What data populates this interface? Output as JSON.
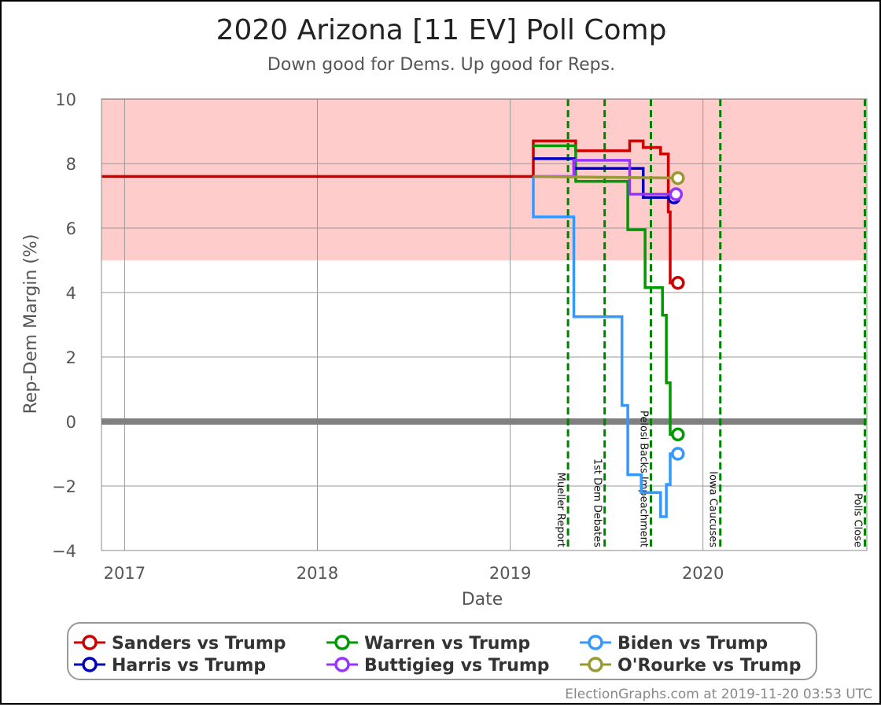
{
  "header": {
    "title": "2020 Arizona [11 EV] Poll Comp",
    "subtitle": "Down good for Dems. Up good for Reps."
  },
  "footer": {
    "credit": "ElectionGraphs.com at 2019-11-20 03:53 UTC"
  },
  "colors": {
    "rep_band": "#ffcccc",
    "rep_band_line": "#e08080",
    "zero_line": "#808080",
    "grid": "#999999",
    "event": "#008000",
    "sanders": "#cc0000",
    "warren": "#009900",
    "biden": "#3399ff",
    "harris": "#0000bb",
    "buttigieg": "#9933ff",
    "orourke": "#999933"
  },
  "chart_data": {
    "type": "line",
    "title": "2020 Arizona [11 EV] Poll Comp",
    "subtitle": "Down good for Dems. Up good for Reps.",
    "xlabel": "Date",
    "ylabel": "Rep-Dem Margin (%)",
    "xlim": [
      2016.88,
      2020.85
    ],
    "ylim": [
      -4,
      10
    ],
    "x_ticks": [
      2017,
      2018,
      2019,
      2020
    ],
    "y_ticks": [
      -4,
      -2,
      0,
      2,
      4,
      6,
      8,
      10
    ],
    "x_tick_labels": [
      "2017",
      "2018",
      "2019",
      "2020"
    ],
    "y_tick_labels": [
      "−4",
      "−2",
      "0",
      "2",
      "4",
      "6",
      "8",
      "10"
    ],
    "grid": true,
    "shaded_band": {
      "from": 5,
      "to": 10,
      "meaning": "Strong Rep"
    },
    "events": [
      {
        "x": 2019.3,
        "label": "Mueller Report"
      },
      {
        "x": 2019.49,
        "label": "1st Dem Debates"
      },
      {
        "x": 2019.73,
        "label": "Pelosi Backs Impeachment"
      },
      {
        "x": 2020.09,
        "label": "Iowa Caucuses"
      },
      {
        "x": 2020.84,
        "label": "Polls Close"
      }
    ],
    "series": [
      {
        "name": "Sanders vs Trump",
        "color_key": "sanders",
        "points": [
          [
            2016.88,
            7.6
          ],
          [
            2019.12,
            7.6
          ],
          [
            2019.12,
            8.7
          ],
          [
            2019.34,
            8.7
          ],
          [
            2019.34,
            8.4
          ],
          [
            2019.62,
            8.4
          ],
          [
            2019.62,
            8.7
          ],
          [
            2019.69,
            8.7
          ],
          [
            2019.69,
            8.5
          ],
          [
            2019.78,
            8.5
          ],
          [
            2019.78,
            8.3
          ],
          [
            2019.82,
            8.3
          ],
          [
            2019.82,
            6.5
          ],
          [
            2019.83,
            6.5
          ],
          [
            2019.83,
            4.3
          ],
          [
            2019.87,
            4.3
          ]
        ]
      },
      {
        "name": "Warren vs Trump",
        "color_key": "warren",
        "points": [
          [
            2019.12,
            8.55
          ],
          [
            2019.34,
            8.55
          ],
          [
            2019.34,
            7.45
          ],
          [
            2019.61,
            7.45
          ],
          [
            2019.61,
            5.95
          ],
          [
            2019.7,
            5.95
          ],
          [
            2019.7,
            4.15
          ],
          [
            2019.79,
            4.15
          ],
          [
            2019.79,
            3.3
          ],
          [
            2019.81,
            3.3
          ],
          [
            2019.81,
            1.2
          ],
          [
            2019.83,
            1.2
          ],
          [
            2019.83,
            -0.4
          ],
          [
            2019.87,
            -0.4
          ]
        ]
      },
      {
        "name": "Biden vs Trump",
        "color_key": "biden",
        "points": [
          [
            2019.12,
            7.6
          ],
          [
            2019.12,
            6.35
          ],
          [
            2019.33,
            6.35
          ],
          [
            2019.33,
            3.25
          ],
          [
            2019.58,
            3.25
          ],
          [
            2019.58,
            0.5
          ],
          [
            2019.61,
            0.5
          ],
          [
            2019.61,
            -1.65
          ],
          [
            2019.68,
            -1.65
          ],
          [
            2019.68,
            -2.2
          ],
          [
            2019.78,
            -2.2
          ],
          [
            2019.78,
            -2.95
          ],
          [
            2019.81,
            -2.95
          ],
          [
            2019.81,
            -1.95
          ],
          [
            2019.83,
            -1.95
          ],
          [
            2019.83,
            -1.0
          ],
          [
            2019.87,
            -1.0
          ]
        ]
      },
      {
        "name": "Harris vs Trump",
        "color_key": "harris",
        "points": [
          [
            2019.12,
            8.15
          ],
          [
            2019.33,
            8.15
          ],
          [
            2019.33,
            7.85
          ],
          [
            2019.69,
            7.85
          ],
          [
            2019.69,
            6.95
          ],
          [
            2019.85,
            6.95
          ]
        ]
      },
      {
        "name": "Buttigieg vs Trump",
        "color_key": "buttigieg",
        "points": [
          [
            2019.12,
            7.6
          ],
          [
            2019.33,
            7.6
          ],
          [
            2019.33,
            8.1
          ],
          [
            2019.62,
            8.1
          ],
          [
            2019.62,
            7.05
          ],
          [
            2019.86,
            7.05
          ]
        ]
      },
      {
        "name": "O'Rourke vs Trump",
        "color_key": "orourke",
        "points": [
          [
            2019.12,
            7.6
          ],
          [
            2019.87,
            7.55
          ]
        ]
      }
    ]
  }
}
